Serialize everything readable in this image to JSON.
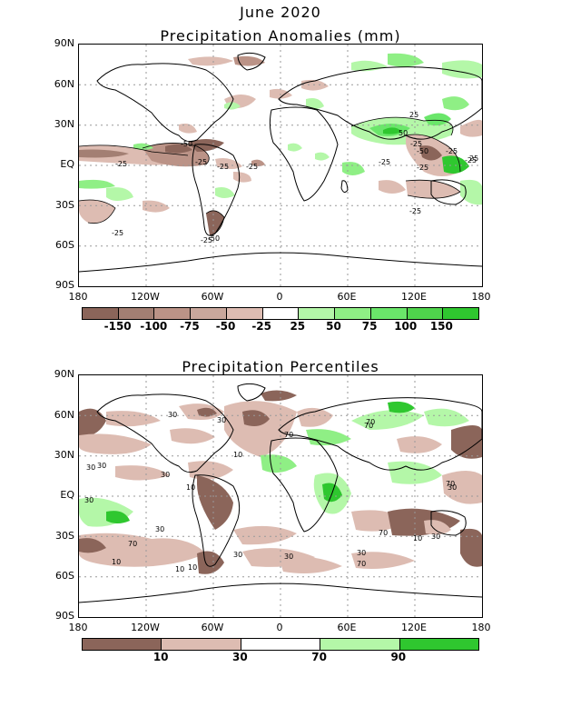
{
  "header": {
    "title_line1": "June 2020"
  },
  "panel1": {
    "title": "Precipitation Anomalies (mm)",
    "lat_labels": [
      "90N",
      "60N",
      "30N",
      "EQ",
      "30S",
      "60S",
      "90S"
    ],
    "lon_labels": [
      "180",
      "120W",
      "60W",
      "0",
      "60E",
      "120E",
      "180"
    ],
    "colorbar": {
      "colors": [
        "#8b655a",
        "#a37f73",
        "#bb9387",
        "#c9a79c",
        "#ddbcb2",
        "#ffffff",
        "#b4f7a8",
        "#8fef85",
        "#6ae66a",
        "#4fd44c",
        "#2fc72f"
      ],
      "labels": [
        "-150",
        "-100",
        "-75",
        "-50",
        "-25",
        "25",
        "50",
        "75",
        "100",
        "150"
      ]
    },
    "contour_labels": [
      "-50",
      "-25",
      "-25",
      "-25",
      "-50",
      "-25",
      "-25",
      "-25",
      "25",
      "50",
      "-25",
      "-25",
      "-50",
      "-25",
      "-25",
      "25",
      "-25",
      "-25"
    ]
  },
  "panel2": {
    "title": "Precipitation Percentiles",
    "lat_labels": [
      "90N",
      "60N",
      "30N",
      "EQ",
      "30S",
      "60S",
      "90S"
    ],
    "lon_labels": [
      "180",
      "120W",
      "60W",
      "0",
      "60E",
      "120E",
      "180"
    ],
    "colorbar": {
      "colors": [
        "#8b655a",
        "#ddbcb2",
        "#ffffff",
        "#b4f7a8",
        "#2fc72f"
      ],
      "labels": [
        "10",
        "30",
        "70",
        "90"
      ]
    },
    "contour_labels": [
      "30",
      "70",
      "10",
      "30",
      "10",
      "30",
      "30",
      "70",
      "70",
      "30",
      "30",
      "70",
      "30",
      "70",
      "10",
      "30",
      "10",
      "30",
      "30",
      "70",
      "10",
      "70",
      "30",
      "30",
      "10"
    ]
  },
  "colors": {
    "brown_dark": "#8b655a",
    "brown_light": "#ddbcb2",
    "green_light": "#b4f7a8",
    "green_dark": "#2fc72f"
  }
}
